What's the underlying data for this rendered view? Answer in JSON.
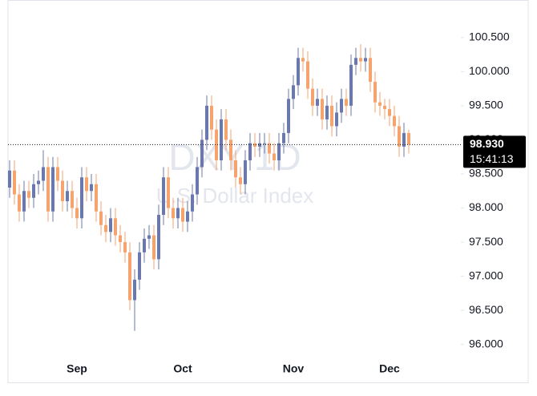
{
  "chart_data": {
    "type": "candlestick",
    "watermark": "DXY 1D",
    "watermark_subtitle": "U.S. Dollar Index",
    "up_color": "#6a78ad",
    "down_color": "#f5a36f",
    "categories": [
      null,
      null,
      null,
      null,
      null,
      null,
      null,
      null,
      null,
      null,
      null,
      null,
      null,
      null,
      "Sep",
      null,
      null,
      null,
      null,
      null,
      null,
      null,
      null,
      null,
      null,
      null,
      null,
      null,
      null,
      null,
      null,
      null,
      null,
      null,
      null,
      null,
      "Oct",
      null,
      null,
      null,
      null,
      null,
      null,
      null,
      null,
      null,
      null,
      null,
      null,
      null,
      null,
      null,
      null,
      null,
      null,
      null,
      null,
      null,
      null,
      "Nov",
      null,
      null,
      null,
      null,
      null,
      null,
      null,
      null,
      null,
      null,
      null,
      null,
      null,
      null,
      null,
      null,
      null,
      null,
      null,
      "Dec",
      null,
      null,
      null,
      null
    ],
    "open": [
      98.3,
      98.55,
      98.2,
      97.95,
      98.25,
      98.15,
      98.35,
      98.4,
      98.6,
      97.95,
      98.6,
      98.4,
      98.1,
      98.25,
      98.0,
      97.85,
      98.45,
      98.25,
      98.35,
      97.95,
      97.75,
      97.65,
      97.85,
      97.6,
      97.5,
      97.35,
      96.65,
      96.95,
      97.35,
      97.55,
      97.6,
      97.25,
      97.9,
      98.45,
      98.0,
      97.85,
      98.0,
      97.8,
      97.95,
      98.2,
      98.6,
      99.0,
      99.5,
      99.15,
      98.7,
      99.3,
      99.0,
      98.7,
      98.45,
      98.35,
      98.7,
      98.95,
      98.9,
      98.95,
      98.95,
      98.8,
      98.7,
      98.95,
      99.1,
      99.6,
      99.8,
      100.2,
      100.15,
      99.75,
      99.5,
      99.6,
      99.3,
      99.5,
      99.2,
      99.4,
      99.6,
      99.5,
      100.1,
      100.2,
      100.15,
      100.2,
      99.85,
      99.55,
      99.5,
      99.45,
      99.35,
      99.2,
      98.9,
      99.1
    ],
    "high": [
      98.7,
      98.7,
      98.35,
      98.4,
      98.4,
      98.5,
      98.55,
      98.85,
      98.75,
      98.75,
      98.75,
      98.55,
      98.4,
      98.4,
      98.15,
      98.6,
      98.6,
      98.5,
      98.5,
      98.1,
      97.9,
      98.0,
      98.0,
      97.75,
      97.65,
      97.5,
      97.1,
      97.5,
      97.7,
      97.75,
      97.75,
      98.05,
      98.6,
      98.6,
      98.15,
      98.15,
      98.15,
      98.1,
      98.35,
      98.75,
      99.15,
      99.65,
      99.65,
      99.3,
      99.45,
      99.45,
      99.15,
      98.85,
      98.6,
      98.85,
      99.1,
      99.1,
      99.1,
      99.1,
      99.1,
      98.95,
      99.1,
      99.25,
      99.75,
      99.95,
      100.35,
      100.35,
      100.3,
      99.9,
      99.75,
      99.75,
      99.65,
      99.65,
      99.55,
      99.75,
      99.75,
      100.25,
      100.35,
      100.4,
      100.35,
      100.35,
      100.0,
      99.7,
      99.6,
      99.6,
      99.5,
      99.35,
      99.25,
      99.15
    ],
    "low": [
      98.15,
      98.05,
      97.8,
      97.8,
      98.0,
      98.0,
      98.2,
      98.25,
      97.8,
      97.8,
      98.25,
      97.95,
      97.95,
      97.85,
      97.7,
      97.7,
      98.1,
      98.1,
      97.8,
      97.6,
      97.5,
      97.5,
      97.45,
      97.35,
      97.2,
      96.5,
      96.2,
      96.8,
      97.2,
      97.4,
      97.1,
      97.1,
      97.75,
      97.85,
      97.7,
      97.7,
      97.65,
      97.65,
      97.8,
      98.05,
      98.45,
      98.85,
      99.0,
      98.55,
      98.55,
      98.85,
      98.55,
      98.3,
      98.2,
      98.2,
      98.55,
      98.75,
      98.75,
      98.8,
      98.65,
      98.55,
      98.55,
      98.8,
      98.95,
      99.45,
      99.65,
      100.0,
      99.6,
      99.35,
      99.35,
      99.15,
      99.15,
      99.05,
      99.05,
      99.25,
      99.35,
      99.35,
      99.95,
      100.0,
      100.0,
      99.7,
      99.4,
      99.35,
      99.3,
      99.2,
      99.05,
      98.75,
      98.75,
      98.8
    ],
    "close": [
      98.55,
      98.2,
      97.95,
      98.25,
      98.15,
      98.35,
      98.4,
      98.6,
      97.95,
      98.6,
      98.4,
      98.1,
      98.25,
      98.0,
      97.85,
      98.45,
      98.25,
      98.35,
      97.95,
      97.75,
      97.65,
      97.85,
      97.6,
      97.5,
      97.35,
      96.65,
      96.95,
      97.35,
      97.55,
      97.6,
      97.25,
      97.9,
      98.45,
      98.0,
      97.85,
      98.0,
      97.8,
      97.95,
      98.2,
      98.6,
      99.0,
      99.5,
      99.15,
      98.7,
      99.3,
      99.0,
      98.7,
      98.45,
      98.35,
      98.7,
      98.95,
      98.9,
      98.95,
      98.95,
      98.8,
      98.7,
      98.95,
      99.1,
      99.6,
      99.8,
      100.2,
      100.15,
      99.75,
      99.5,
      99.6,
      99.3,
      99.5,
      99.2,
      99.4,
      99.6,
      99.5,
      100.1,
      100.2,
      100.15,
      100.2,
      99.85,
      99.55,
      99.5,
      99.45,
      99.35,
      99.2,
      98.9,
      99.1,
      98.93
    ],
    "last_price": {
      "value": 98.93,
      "label": "98.930"
    },
    "last_time": "15:41:13",
    "ylim": [
      95.55,
      101.05
    ],
    "yticks": [
      {
        "value": 96,
        "label": "96.000"
      },
      {
        "value": 96.5,
        "label": "96.500"
      },
      {
        "value": 97,
        "label": "97.000"
      },
      {
        "value": 97.5,
        "label": "97.500"
      },
      {
        "value": 98,
        "label": "98.000"
      },
      {
        "value": 98.5,
        "label": "98.500"
      },
      {
        "value": 99,
        "label": "99.000"
      },
      {
        "value": 99.5,
        "label": "99.500"
      },
      {
        "value": 100,
        "label": "100.000"
      },
      {
        "value": 100.5,
        "label": "100.500"
      }
    ]
  }
}
